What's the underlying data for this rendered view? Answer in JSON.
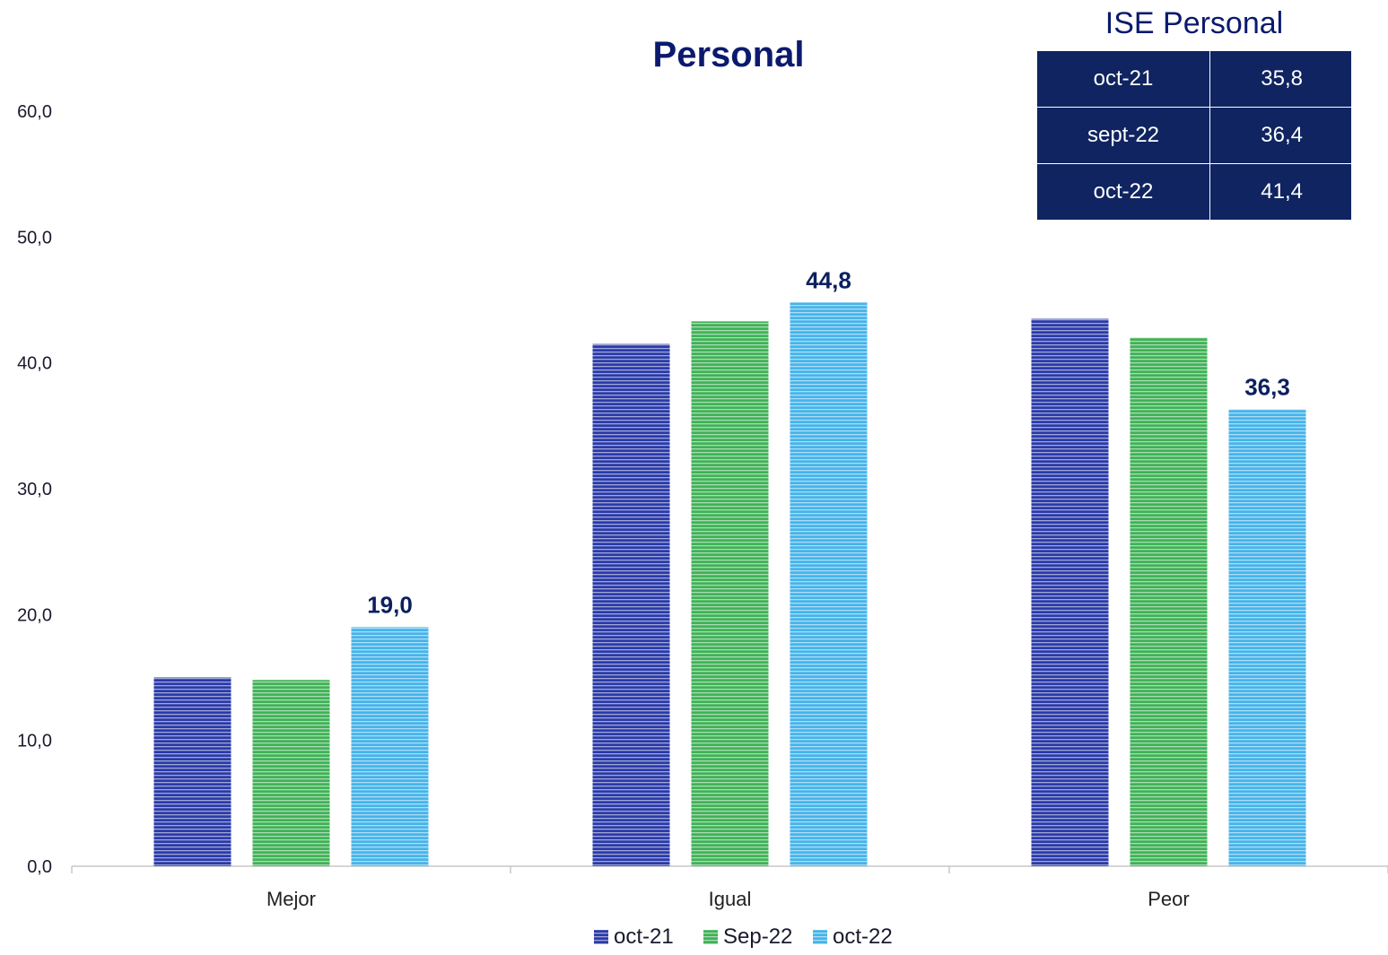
{
  "chart_data": {
    "type": "bar",
    "title": "Personal",
    "categories": [
      "Mejor",
      "Igual",
      "Peor"
    ],
    "series": [
      {
        "name": "oct-21",
        "values": [
          15.0,
          41.5,
          43.5
        ],
        "color": "#2a3aa8"
      },
      {
        "name": "Sep-22",
        "values": [
          14.8,
          43.3,
          42.0
        ],
        "color": "#3fb256"
      },
      {
        "name": "oct-22",
        "values": [
          19.0,
          44.8,
          36.3
        ],
        "color": "#45b4ea"
      }
    ],
    "data_labels": [
      {
        "series": 2,
        "category": 0,
        "text": "19,0"
      },
      {
        "series": 2,
        "category": 1,
        "text": "44,8"
      },
      {
        "series": 2,
        "category": 2,
        "text": "36,3"
      }
    ],
    "ylim": [
      0,
      60
    ],
    "y_ticks": [
      0,
      10,
      20,
      30,
      40,
      50,
      60
    ],
    "y_tick_labels": [
      "0,0",
      "10,0",
      "20,0",
      "30,0",
      "40,0",
      "50,0",
      "60,0"
    ],
    "xlabel": "",
    "ylabel": "",
    "grid": false,
    "legend_position": "bottom"
  },
  "ise_table": {
    "title": "ISE Personal",
    "rows": [
      {
        "label": "oct-21",
        "value": "35,8"
      },
      {
        "label": "sept-22",
        "value": "36,4"
      },
      {
        "label": "oct-22",
        "value": "41,4"
      }
    ]
  }
}
